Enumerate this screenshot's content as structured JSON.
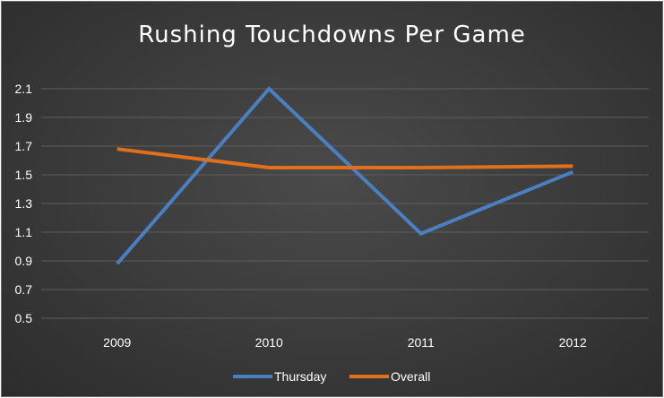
{
  "chart_data": {
    "type": "line",
    "title": "Rushing Touchdowns Per Game",
    "xlabel": "",
    "ylabel": "",
    "categories": [
      "2009",
      "2010",
      "2011",
      "2012"
    ],
    "ylim": [
      0.5,
      2.1
    ],
    "yticks": [
      "0.5",
      "0.7",
      "0.9",
      "1.1",
      "1.3",
      "1.5",
      "1.7",
      "1.9",
      "2.1"
    ],
    "grid": true,
    "legend_position": "bottom",
    "series": [
      {
        "name": "Thursday",
        "color": "#4a7fc1",
        "values": [
          0.88,
          2.1,
          1.09,
          1.52
        ]
      },
      {
        "name": "Overall",
        "color": "#e0701a",
        "values": [
          1.68,
          1.55,
          1.55,
          1.56
        ]
      }
    ]
  }
}
